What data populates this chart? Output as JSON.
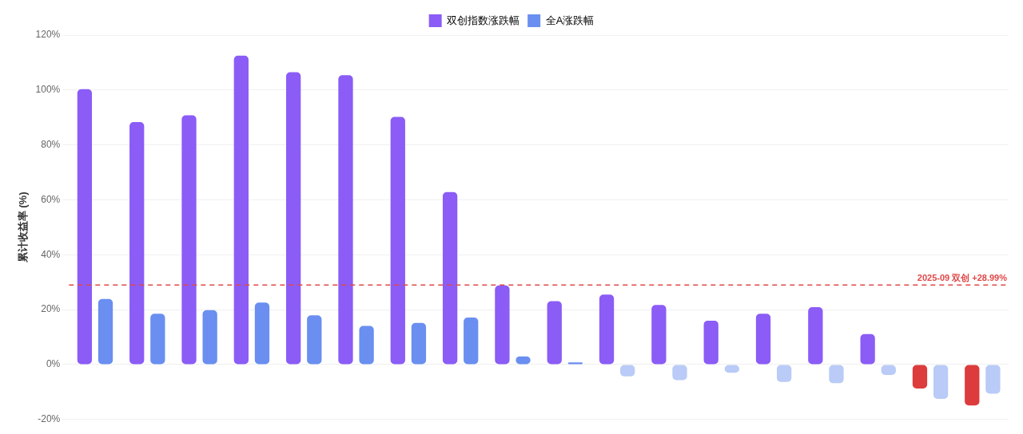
{
  "chart_data": {
    "type": "bar",
    "ylabel": "累计收益率 (%)",
    "categories": [
      null,
      null,
      null,
      null,
      null,
      null,
      null,
      null,
      null,
      null,
      null,
      null,
      null,
      null,
      null,
      null,
      null,
      null
    ],
    "series": [
      {
        "name": "双创指数涨跌幅",
        "color": "#8b5cf6",
        "colors": [
          "#8b5cf6",
          "#8b5cf6",
          "#8b5cf6",
          "#8b5cf6",
          "#8b5cf6",
          "#8b5cf6",
          "#8b5cf6",
          "#8b5cf6",
          "#8b5cf6",
          "#8b5cf6",
          "#8b5cf6",
          "#8b5cf6",
          "#8b5cf6",
          "#8b5cf6",
          "#8b5cf6",
          "#8b5cf6",
          "#dc3c3c",
          "#dc3c3c"
        ],
        "values": [
          100.3,
          88.3,
          90.8,
          112.5,
          106.5,
          105.4,
          90.2,
          62.8,
          28.8,
          23.1,
          25.5,
          21.7,
          16.0,
          18.5,
          20.9,
          11.1,
          -8.7,
          -14.9
        ]
      },
      {
        "name": "全A涨跌幅",
        "color": "#6a8ff0",
        "colors": [
          "#6a8ff0",
          "#6a8ff0",
          "#6a8ff0",
          "#6a8ff0",
          "#6a8ff0",
          "#6a8ff0",
          "#6a8ff0",
          "#6a8ff0",
          "#6a8ff0",
          "#6a8ff0",
          "#b9cbf6",
          "#b9cbf6",
          "#b9cbf6",
          "#b9cbf6",
          "#b9cbf6",
          "#b9cbf6",
          "#b9cbf6",
          "#b9cbf6"
        ],
        "values": [
          23.9,
          18.5,
          19.8,
          22.6,
          17.9,
          14.1,
          15.2,
          17.1,
          3.0,
          0.8,
          -4.3,
          -5.7,
          -3.0,
          -6.3,
          -6.8,
          -3.8,
          -12.5,
          -10.6
        ]
      }
    ],
    "ylim": [
      -20,
      120
    ],
    "yticks": [
      {
        "value": -20,
        "label": "-20%"
      },
      {
        "value": 0,
        "label": "0%"
      },
      {
        "value": 20,
        "label": "20%"
      },
      {
        "value": 40,
        "label": "40%"
      },
      {
        "value": 60,
        "label": "60%"
      },
      {
        "value": 80,
        "label": "80%"
      },
      {
        "value": 100,
        "label": "100%"
      },
      {
        "value": 120,
        "label": "120%"
      }
    ],
    "ref_lines": [
      {
        "axis": "y",
        "value": 28.99,
        "label": "2025-09 双创 +28.99%",
        "color": "#e04848",
        "line_style": "dashed"
      }
    ],
    "grid": "y",
    "legend": "top"
  }
}
